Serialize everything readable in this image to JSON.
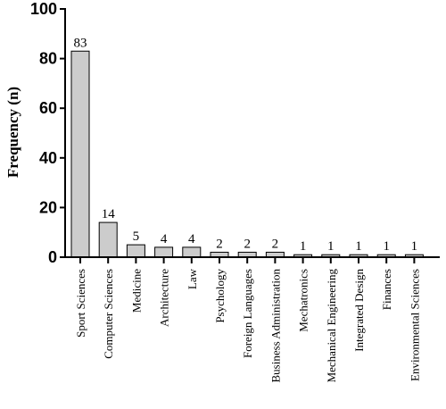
{
  "chart_data": {
    "type": "bar",
    "title": "",
    "xlabel": "",
    "ylabel": "Frequency (n)",
    "ylim": [
      0,
      100
    ],
    "yticks": [
      0,
      20,
      40,
      60,
      80,
      100
    ],
    "categories": [
      "Sport Sciences",
      "Computer Sciences",
      "Medicine",
      "Architecture",
      "Law",
      "Psychology",
      "Foreign Languages",
      "Business Administration",
      "Mechatronics",
      "Mechanical  Engineering",
      "Integrated Design",
      "Finances",
      "Environmental Sciences"
    ],
    "values": [
      83,
      14,
      5,
      4,
      4,
      2,
      2,
      2,
      1,
      1,
      1,
      1,
      1
    ],
    "bar_color": "#cccccc",
    "bar_edge_color": "#000000",
    "grid": false,
    "legend": "none"
  }
}
